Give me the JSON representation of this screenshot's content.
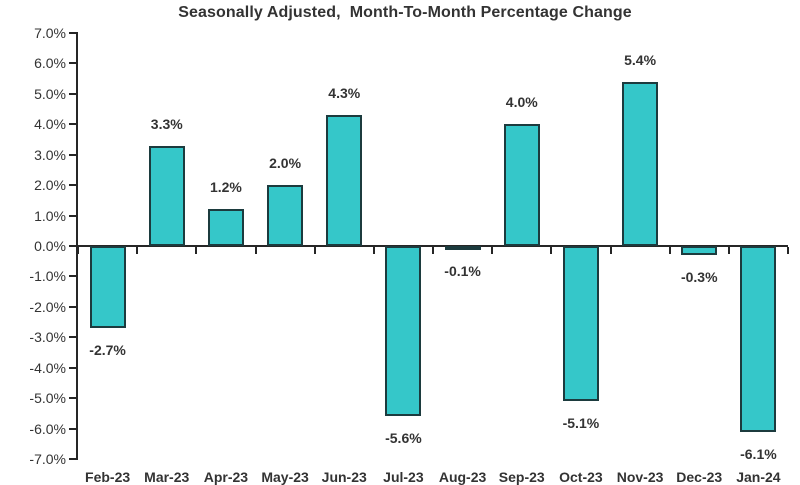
{
  "chart_data": {
    "type": "bar",
    "title": "Seasonally Adjusted,  Month-To-Month Percentage Change",
    "categories": [
      "Feb-23",
      "Mar-23",
      "Apr-23",
      "May-23",
      "Jun-23",
      "Jul-23",
      "Aug-23",
      "Sep-23",
      "Oct-23",
      "Nov-23",
      "Dec-23",
      "Jan-24"
    ],
    "values": [
      -2.7,
      3.3,
      1.2,
      2.0,
      4.3,
      -5.6,
      -0.1,
      4.0,
      -5.1,
      5.4,
      -0.3,
      -6.1
    ],
    "data_labels": [
      "-2.7%",
      "3.3%",
      "1.2%",
      "2.0%",
      "4.3%",
      "-5.6%",
      "-0.1%",
      "4.0%",
      "-5.1%",
      "5.4%",
      "-0.3%",
      "-6.1%"
    ],
    "xlabel": "",
    "ylabel": "",
    "ylim": [
      -7.0,
      7.0
    ],
    "ytick_step": 1.0,
    "ytick_labels": [
      "7.0%",
      "6.0%",
      "5.0%",
      "4.0%",
      "3.0%",
      "2.0%",
      "1.0%",
      "0.0%",
      "-1.0%",
      "-2.0%",
      "-3.0%",
      "-4.0%",
      "-5.0%",
      "-6.0%",
      "-7.0%"
    ],
    "grid": false,
    "legend_position": "none",
    "colors": {
      "bar_fill": "#35c7c9",
      "bar_border": "#1c3b3e",
      "axis": "#262626",
      "text": "#333333",
      "background": "#ffffff"
    }
  }
}
